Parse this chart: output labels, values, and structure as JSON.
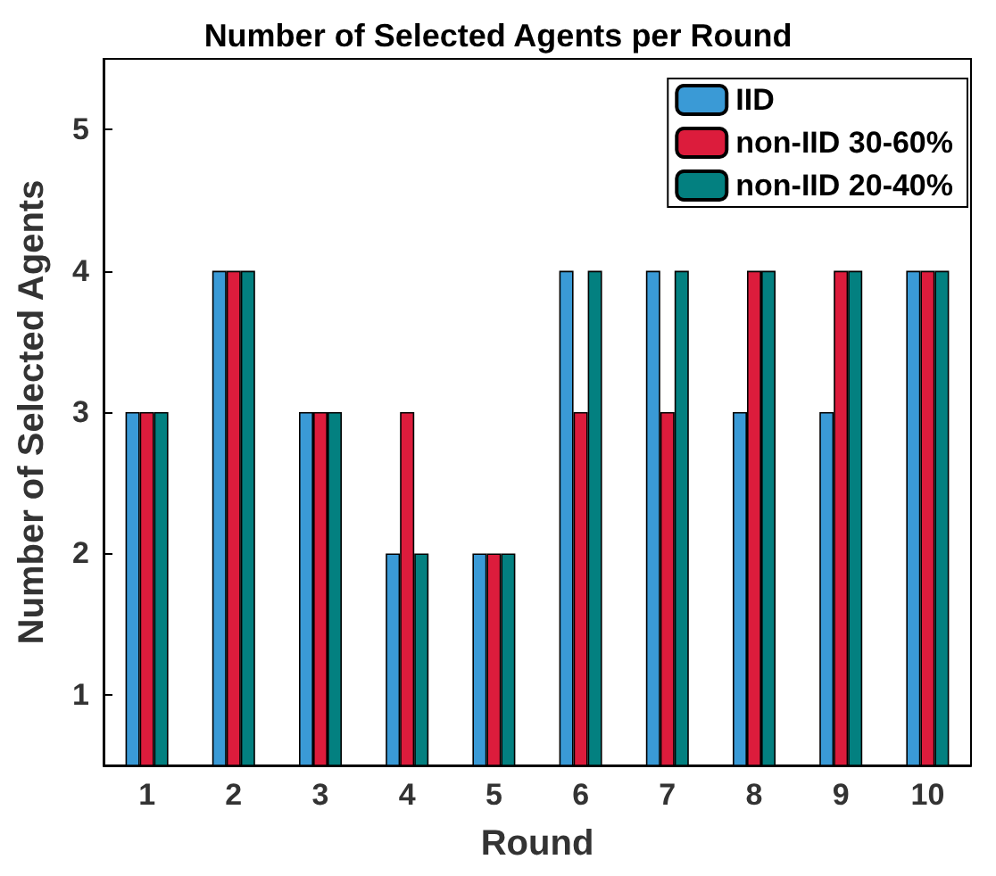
{
  "chart_data": {
    "type": "bar",
    "title": "Number of Selected Agents per Round",
    "xlabel": "Round",
    "ylabel": "Number of Selected Agents",
    "categories": [
      "1",
      "2",
      "3",
      "4",
      "5",
      "6",
      "7",
      "8",
      "9",
      "10"
    ],
    "series": [
      {
        "name": "IID",
        "color": "#3a9ad6",
        "values": [
          3,
          4,
          3,
          2,
          2,
          4,
          4,
          3,
          3,
          4
        ]
      },
      {
        "name": "non-IID 30-60%",
        "color": "#dc1c3c",
        "values": [
          3,
          4,
          3,
          3,
          2,
          3,
          3,
          4,
          4,
          4
        ]
      },
      {
        "name": "non-IID 20-40%",
        "color": "#038080",
        "values": [
          3,
          4,
          3,
          2,
          2,
          4,
          4,
          4,
          4,
          4
        ]
      }
    ],
    "ylim": [
      0.5,
      5.5
    ],
    "yticks": [
      1,
      2,
      3,
      4,
      5
    ],
    "grid": false,
    "legend": "top right"
  }
}
